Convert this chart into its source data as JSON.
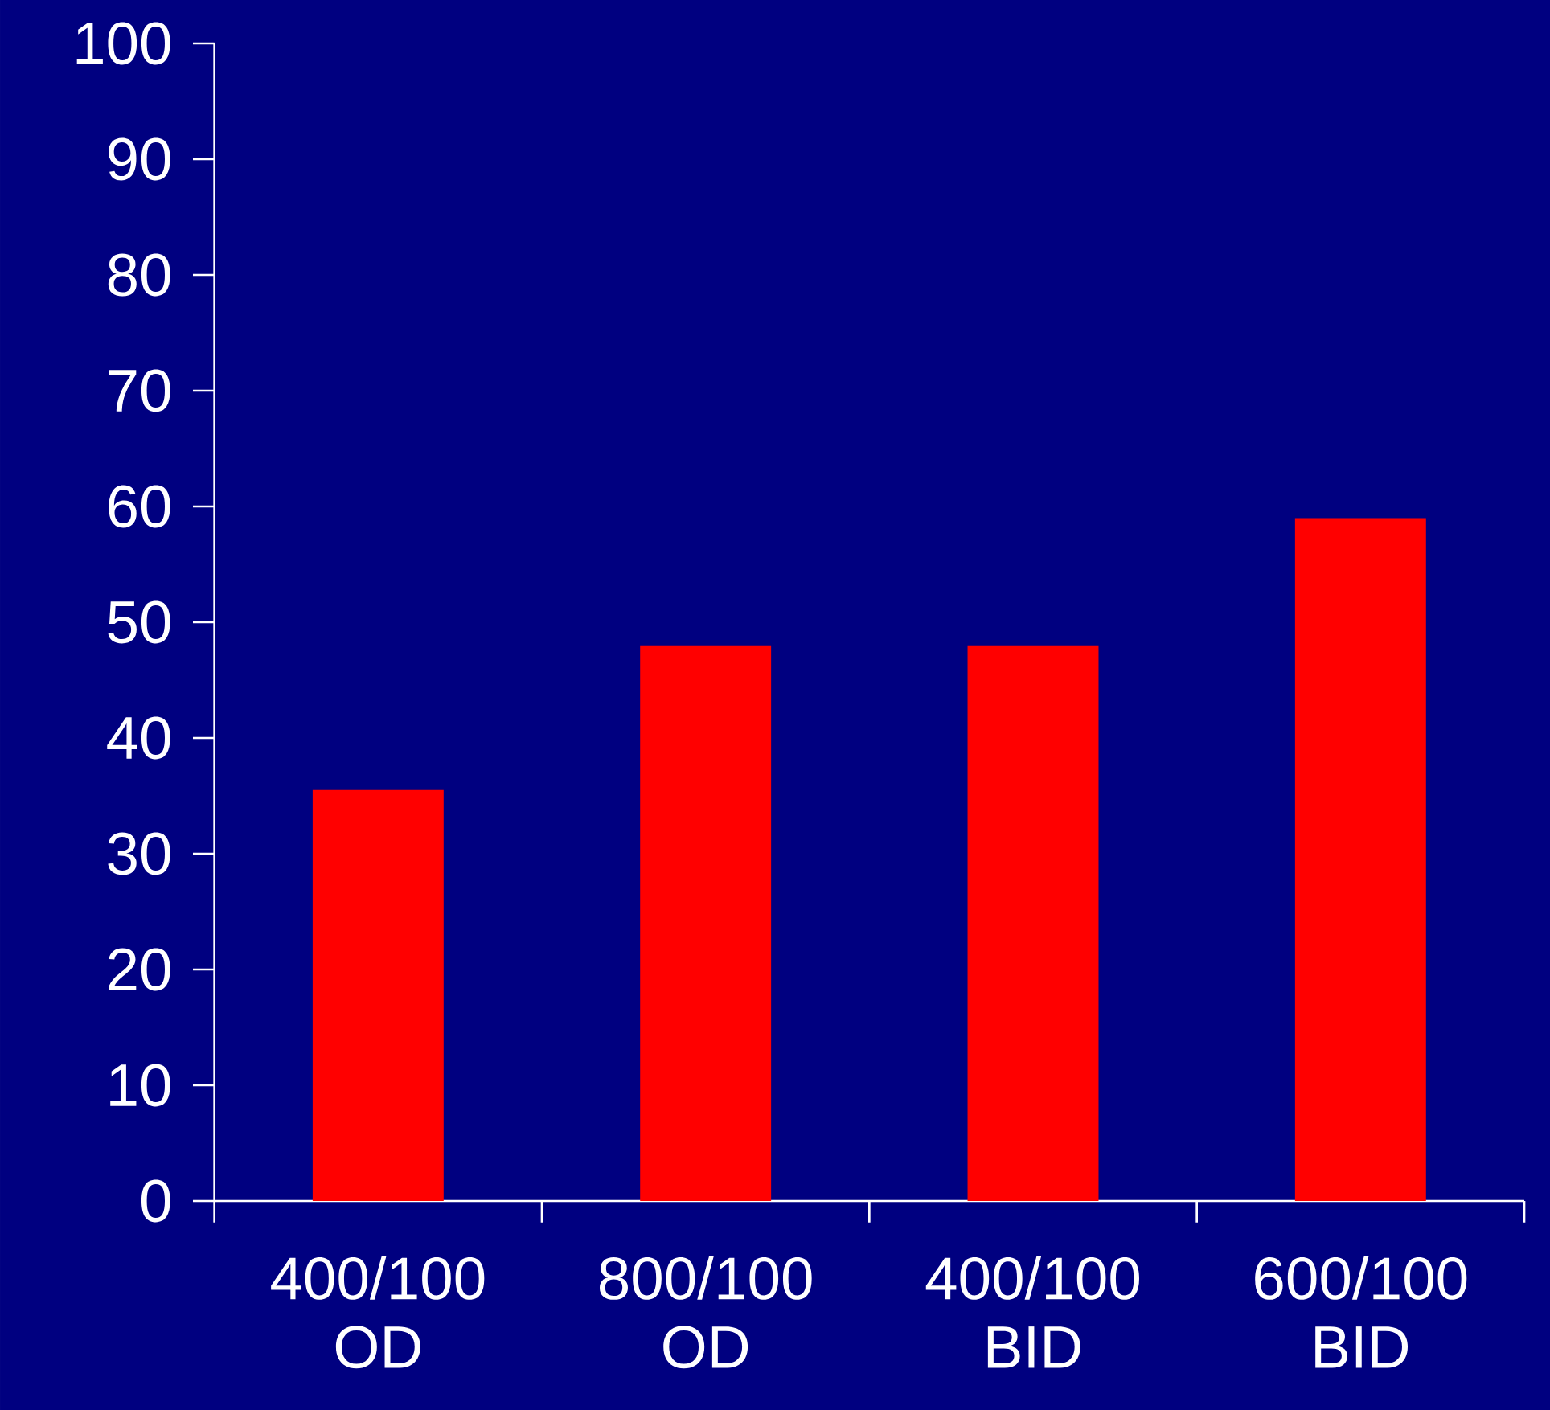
{
  "chart_data": {
    "type": "bar",
    "categories": [
      "400/100 OD",
      "800/100 OD",
      "400/100 BID",
      "600/100 BID"
    ],
    "values": [
      35.5,
      48,
      48,
      59
    ],
    "color": "#ff0000",
    "ylim": [
      0,
      100
    ],
    "yticks": [
      0,
      10,
      20,
      30,
      40,
      50,
      60,
      70,
      80,
      90,
      100
    ],
    "grid": false
  }
}
